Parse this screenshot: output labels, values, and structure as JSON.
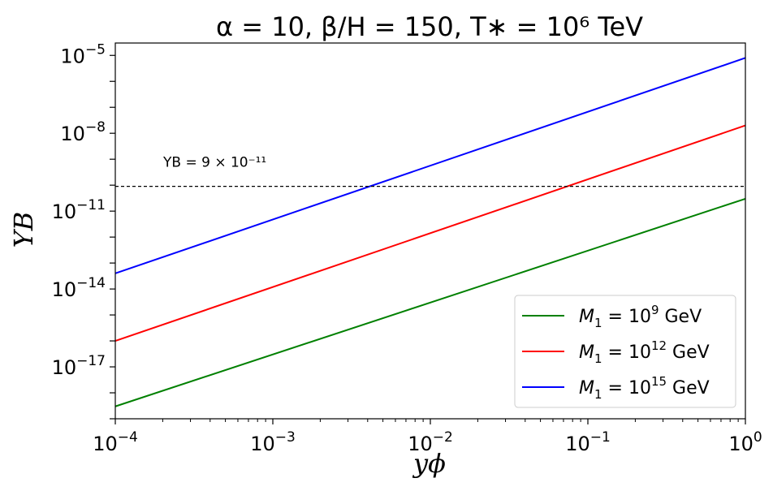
{
  "chart_data": {
    "type": "line",
    "title": "α = 10, β/H = 150, T∗ = 10⁶  TeV",
    "xlabel": "yϕ",
    "ylabel": "YB",
    "xscale": "log",
    "yscale": "log",
    "xlim": [
      0.0001,
      1
    ],
    "ylim": [
      1e-19,
      3e-05
    ],
    "x_ticks": [
      {
        "value": 0.0001,
        "base": "10",
        "exp": "−4"
      },
      {
        "value": 0.001,
        "base": "10",
        "exp": "−3"
      },
      {
        "value": 0.01,
        "base": "10",
        "exp": "−2"
      },
      {
        "value": 0.1,
        "base": "10",
        "exp": "−1"
      },
      {
        "value": 1,
        "base": "10",
        "exp": "0"
      }
    ],
    "y_ticks": [
      {
        "value": 1e-17,
        "base": "10",
        "exp": "−17"
      },
      {
        "value": 1e-14,
        "base": "10",
        "exp": "−14"
      },
      {
        "value": 1e-11,
        "base": "10",
        "exp": "−11"
      },
      {
        "value": 1e-08,
        "base": "10",
        "exp": "−8"
      },
      {
        "value": 1e-05,
        "base": "10",
        "exp": "−5"
      }
    ],
    "series": [
      {
        "name": "M1 = 10⁹ GeV",
        "legend_main": "M",
        "legend_sub": "1",
        "legend_mid": " = 10",
        "legend_sup": "9",
        "legend_tail": " GeV",
        "color": "#008000",
        "x": [
          0.0001,
          1
        ],
        "y": [
          3e-19,
          3e-11
        ]
      },
      {
        "name": "M1 = 10¹² GeV",
        "legend_main": "M",
        "legend_sub": "1",
        "legend_mid": " = 10",
        "legend_sup": "12",
        "legend_tail": " GeV",
        "color": "#ff0000",
        "x": [
          0.0001,
          1
        ],
        "y": [
          1e-16,
          2e-08
        ]
      },
      {
        "name": "M1 = 10¹⁵ GeV",
        "legend_main": "M",
        "legend_sub": "1",
        "legend_mid": " = 10",
        "legend_sup": "15",
        "legend_tail": " GeV",
        "color": "#0000ff",
        "x": [
          0.0001,
          1
        ],
        "y": [
          4e-14,
          8e-06
        ]
      }
    ],
    "reference_line": {
      "y": 9e-11,
      "style": "dashed",
      "color": "#000000",
      "label": "YB = 9 × 10⁻¹¹"
    },
    "legend_position": "lower-right",
    "grid": false
  }
}
